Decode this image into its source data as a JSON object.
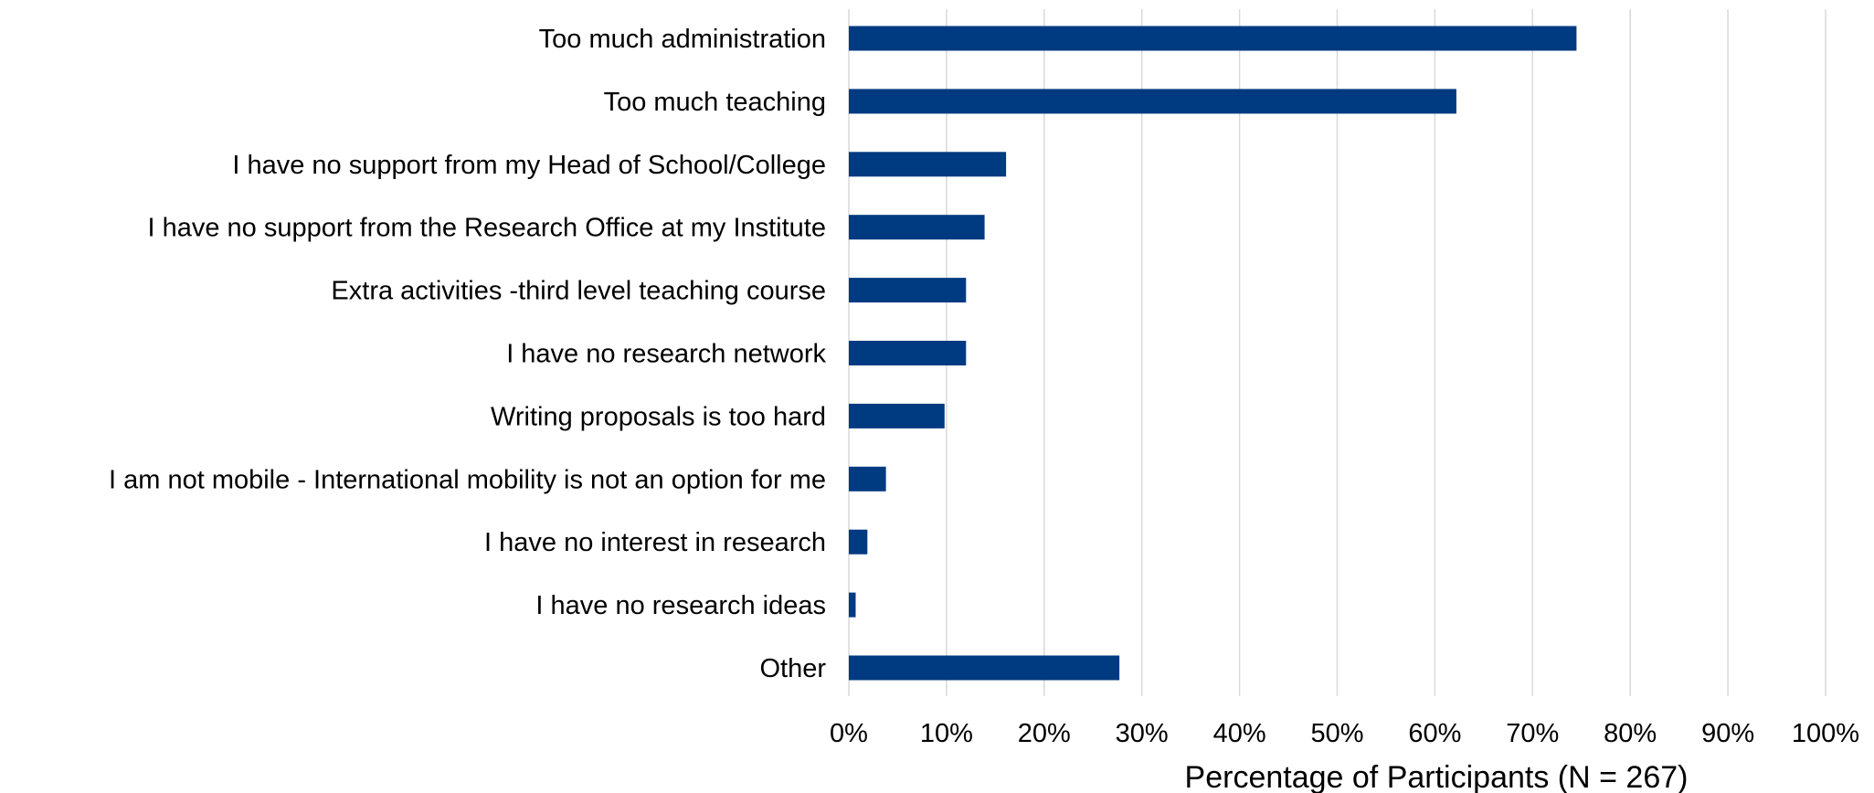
{
  "chart_data": {
    "type": "bar",
    "orientation": "horizontal",
    "categories": [
      "Too much administration",
      "Too much teaching",
      "I have no support from my Head of School/College",
      "I have no support from the Research Office at my Institute",
      "Extra activities -third level teaching course",
      "I have no research network",
      "Writing proposals is too hard",
      "I am not mobile - International mobility is not an option for me",
      "I have no interest in research",
      "I have no research ideas",
      "Other"
    ],
    "values": [
      74.5,
      62.2,
      16.1,
      13.9,
      12.0,
      12.0,
      9.8,
      3.8,
      1.9,
      0.7,
      27.7
    ],
    "value_unit": "percent",
    "xlabel": "Percentage of Participants (N = 267)",
    "ylabel": "",
    "title": "",
    "xlim": [
      0,
      100
    ],
    "x_ticks": [
      "0%",
      "10%",
      "20%",
      "30%",
      "40%",
      "50%",
      "60%",
      "70%",
      "80%",
      "90%",
      "100%"
    ],
    "grid": "vertical",
    "legend": "none",
    "bar_color": "#003a80",
    "grid_color": "#d9d9d9"
  }
}
